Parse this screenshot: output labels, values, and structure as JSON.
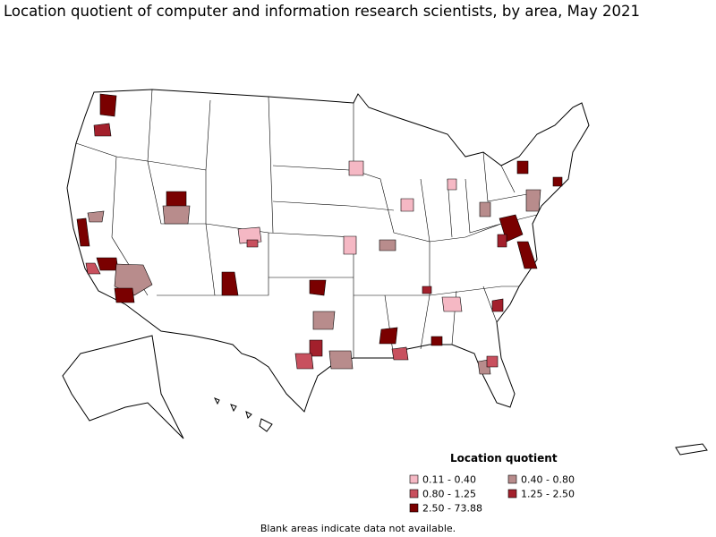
{
  "title": "Location quotient of computer and information research scientists, by area, May 2021",
  "legend": {
    "title": "Location quotient",
    "entries": [
      {
        "label": "0.11 - 0.40",
        "color": "#f5b8c4"
      },
      {
        "label": "0.40 - 0.80",
        "color": "#b88c8c"
      },
      {
        "label": "0.80 - 1.25",
        "color": "#c8505e"
      },
      {
        "label": "1.25 - 2.50",
        "color": "#a3202c"
      },
      {
        "label": "2.50 - 73.88",
        "color": "#7a0000"
      }
    ]
  },
  "note": "Blank areas indicate data not available."
}
